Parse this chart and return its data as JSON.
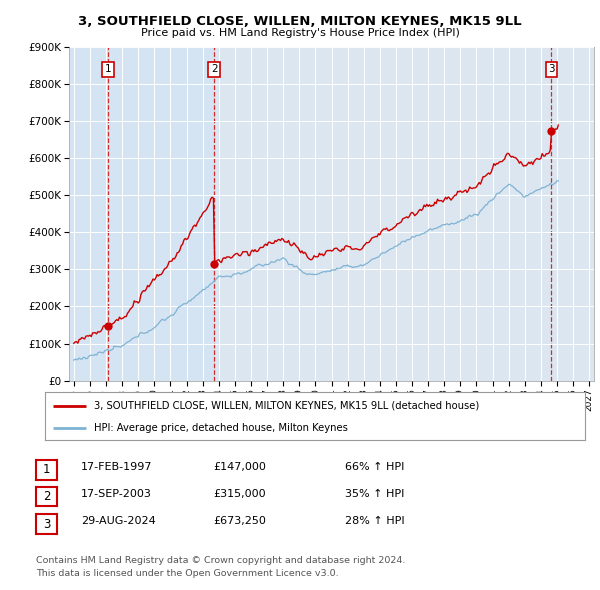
{
  "title": "3, SOUTHFIELD CLOSE, WILLEN, MILTON KEYNES, MK15 9LL",
  "subtitle": "Price paid vs. HM Land Registry's House Price Index (HPI)",
  "legend_line1": "3, SOUTHFIELD CLOSE, WILLEN, MILTON KEYNES, MK15 9LL (detached house)",
  "legend_line2": "HPI: Average price, detached house, Milton Keynes",
  "footnote1": "Contains HM Land Registry data © Crown copyright and database right 2024.",
  "footnote2": "This data is licensed under the Open Government Licence v3.0.",
  "sales": [
    {
      "num": 1,
      "date": "17-FEB-1997",
      "price": 147000,
      "hpi_text": "66% ↑ HPI",
      "year": 1997.12
    },
    {
      "num": 2,
      "date": "17-SEP-2003",
      "price": 315000,
      "hpi_text": "35% ↑ HPI",
      "year": 2003.71
    },
    {
      "num": 3,
      "date": "29-AUG-2024",
      "price": 673250,
      "hpi_text": "28% ↑ HPI",
      "year": 2024.66
    }
  ],
  "red_color": "#cc0000",
  "blue_color": "#7fb3d3",
  "bg_color": "#dce6f1",
  "shade1_color": "#c5d8ec",
  "ylim": [
    0,
    900000
  ],
  "xlim_start": 1994.7,
  "xlim_end": 2027.3
}
